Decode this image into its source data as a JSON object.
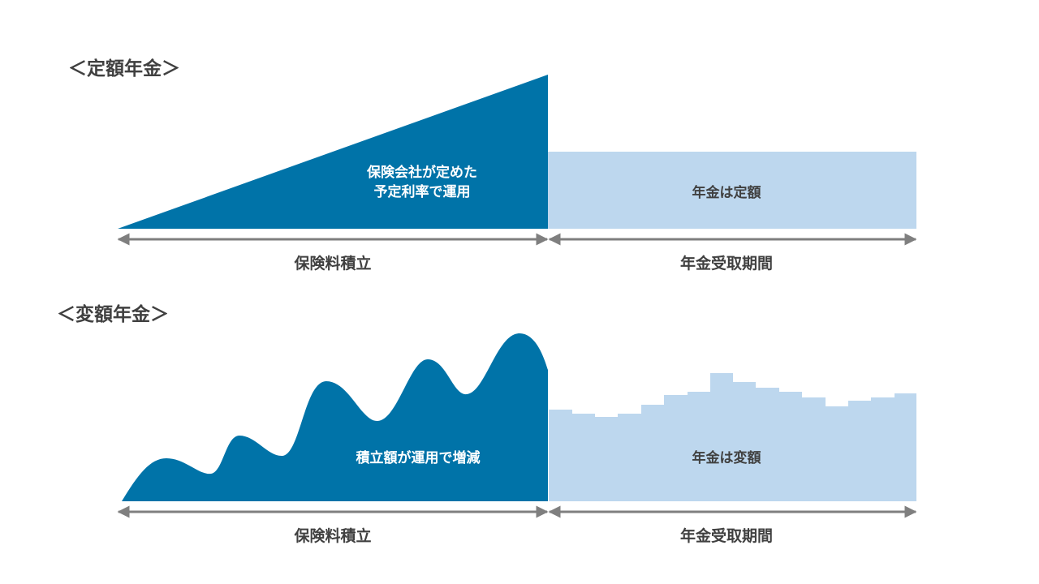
{
  "colors": {
    "accumulation": "#0073a8",
    "payout": "#bdd7ee",
    "arrow": "#7f7f7f",
    "text": "#404040"
  },
  "fixed": {
    "title": "＜定額年金＞",
    "accumulation_text_line1": "保険会社が定めた",
    "accumulation_text_line2": "予定利率で運用",
    "payout_text": "年金は定額",
    "period_accumulation": "保険料積立",
    "period_payout": "年金受取期間"
  },
  "variable": {
    "title": "＜変額年金＞",
    "accumulation_text": "積立額が運用で増減",
    "payout_text": "年金は変額",
    "period_accumulation": "保険料積立",
    "period_payout": "年金受取期間"
  }
}
